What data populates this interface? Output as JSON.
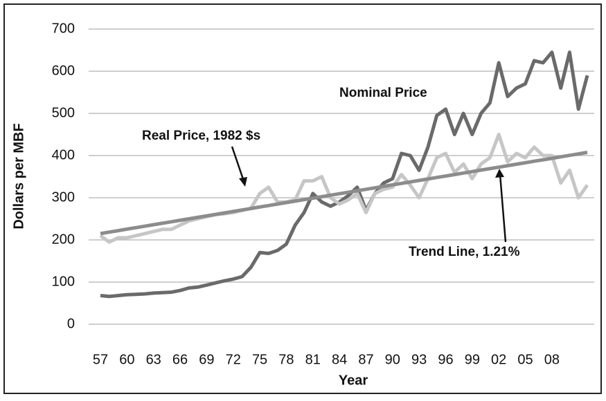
{
  "chart_data": {
    "type": "line",
    "xlabel": "Year",
    "ylabel": "Dollars per MBF",
    "categories": [
      "57",
      null,
      null,
      "60",
      null,
      null,
      "63",
      null,
      null,
      "66",
      null,
      null,
      "69",
      null,
      null,
      "72",
      null,
      null,
      "75",
      null,
      null,
      "78",
      null,
      null,
      "81",
      null,
      null,
      "84",
      null,
      null,
      "87",
      null,
      null,
      "90",
      null,
      null,
      "93",
      null,
      null,
      "96",
      null,
      null,
      "99",
      null,
      null,
      "02",
      null,
      null,
      "05",
      null,
      null,
      "08",
      null,
      null,
      null,
      null
    ],
    "series": [
      {
        "name": "Nominal Price",
        "color": "#6a6a6a",
        "values": [
          68,
          66,
          68,
          70,
          71,
          72,
          74,
          75,
          76,
          80,
          86,
          88,
          93,
          98,
          103,
          107,
          113,
          135,
          170,
          168,
          175,
          190,
          235,
          265,
          310,
          290,
          280,
          290,
          305,
          325,
          270,
          310,
          335,
          345,
          405,
          400,
          365,
          420,
          495,
          510,
          450,
          500,
          450,
          500,
          525,
          620,
          540,
          560,
          570,
          625,
          620,
          645,
          560,
          645,
          510,
          590
        ]
      },
      {
        "name": "Real Price, 1982 $s",
        "color": "#c6c6c6",
        "values": [
          210,
          195,
          205,
          205,
          210,
          215,
          220,
          225,
          225,
          235,
          245,
          250,
          255,
          260,
          262,
          265,
          270,
          275,
          310,
          325,
          290,
          290,
          295,
          340,
          340,
          350,
          300,
          285,
          295,
          310,
          265,
          310,
          320,
          325,
          355,
          330,
          300,
          345,
          395,
          405,
          360,
          380,
          345,
          380,
          395,
          450,
          385,
          405,
          395,
          420,
          400,
          400,
          335,
          365,
          300,
          330
        ]
      },
      {
        "name": "Trend Line,  1.21%",
        "color": "#8c8c8c",
        "values": [
          215,
          218.5,
          222,
          225.5,
          229,
          232.5,
          236,
          239.5,
          243,
          246.5,
          250,
          253.5,
          257,
          260.5,
          264,
          267.5,
          271,
          274.5,
          278,
          281.5,
          285,
          288.5,
          292,
          295.5,
          299,
          302.5,
          306,
          309.5,
          313,
          316.5,
          320,
          323.5,
          327,
          330.5,
          334,
          337.5,
          341,
          344.5,
          348,
          351.5,
          355,
          358.5,
          362,
          365.5,
          369,
          372.5,
          376,
          379.5,
          383,
          386.5,
          390,
          393.5,
          397,
          400.5,
          404,
          407.5
        ]
      }
    ],
    "ylim": [
      0,
      700
    ],
    "yticks": [
      0,
      100,
      200,
      300,
      400,
      500,
      600,
      700
    ],
    "grid": true
  }
}
